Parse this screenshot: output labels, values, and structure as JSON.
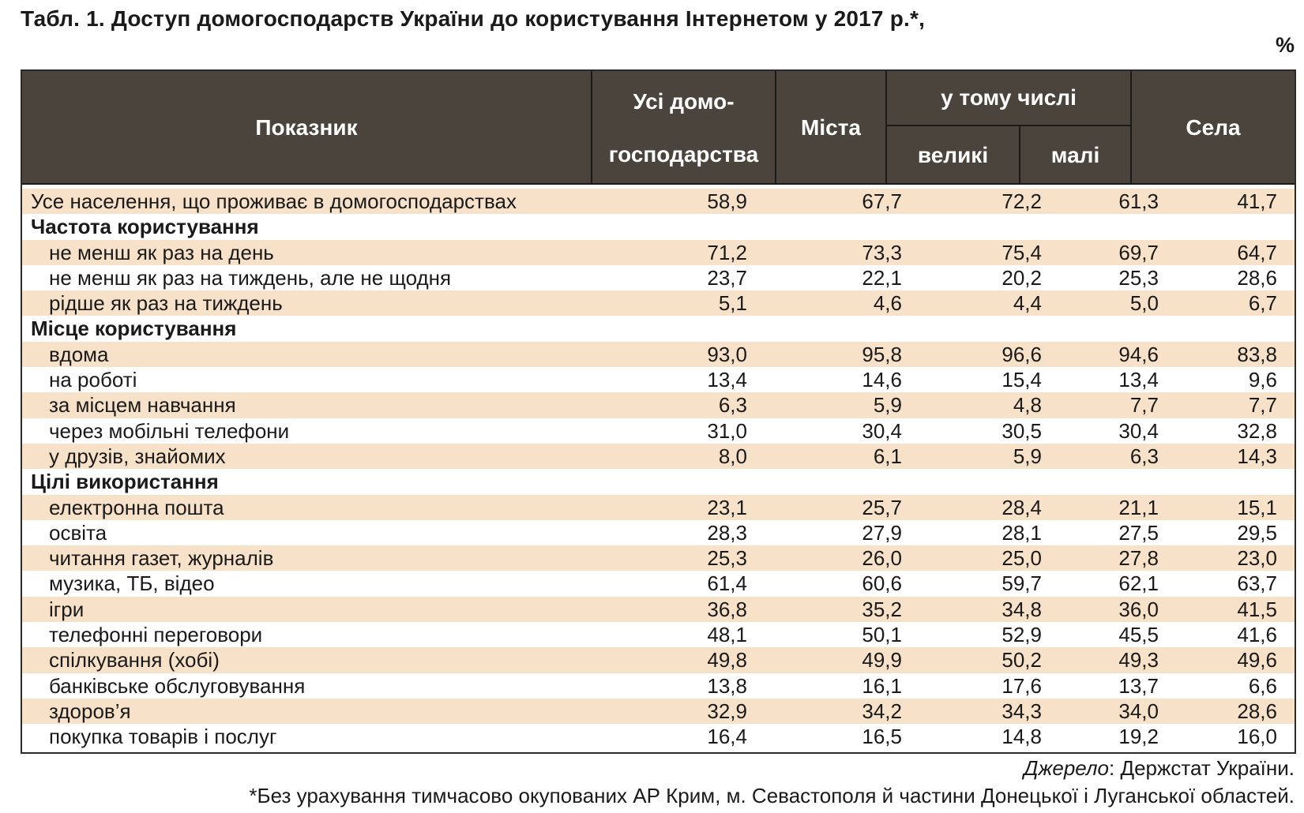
{
  "title": "Табл. 1. Доступ домогосподарств України до користування Інтернетом у 2017 р.*,",
  "unit": "%",
  "header": {
    "indicator": "Показник",
    "all_households": "Усі домо-\nгосподарства",
    "cities": "Міста",
    "including": "у тому числі",
    "large": "великі",
    "small": "малі",
    "villages": "Села"
  },
  "rows": [
    {
      "label": "Усе населення, що проживає в домогосподарствах",
      "values": [
        "58,9",
        "67,7",
        "72,2",
        "61,3",
        "41,7"
      ]
    },
    {
      "label": "Частота користування",
      "values": [
        "",
        "",
        "",
        "",
        ""
      ]
    },
    {
      "label": "не менш як раз на день",
      "values": [
        "71,2",
        "73,3",
        "75,4",
        "69,7",
        "64,7"
      ]
    },
    {
      "label": "не менш як раз на тиждень, але не щодня",
      "values": [
        "23,7",
        "22,1",
        "20,2",
        "25,3",
        "28,6"
      ]
    },
    {
      "label": "рідше як раз на тиждень",
      "values": [
        "5,1",
        "4,6",
        "4,4",
        "5,0",
        "6,7"
      ]
    },
    {
      "label": "Місце користування",
      "values": [
        "",
        "",
        "",
        "",
        ""
      ]
    },
    {
      "label": "вдома",
      "values": [
        "93,0",
        "95,8",
        "96,6",
        "94,6",
        "83,8"
      ]
    },
    {
      "label": "на роботі",
      "values": [
        "13,4",
        "14,6",
        "15,4",
        "13,4",
        "9,6"
      ]
    },
    {
      "label": "за місцем навчання",
      "values": [
        "6,3",
        "5,9",
        "4,8",
        "7,7",
        "7,7"
      ]
    },
    {
      "label": "через мобільні телефони",
      "values": [
        "31,0",
        "30,4",
        "30,5",
        "30,4",
        "32,8"
      ]
    },
    {
      "label": "у друзів, знайомих",
      "values": [
        "8,0",
        "6,1",
        "5,9",
        "6,3",
        "14,3"
      ]
    },
    {
      "label": "Цілі використання",
      "values": [
        "",
        "",
        "",
        "",
        ""
      ]
    },
    {
      "label": "електронна пошта",
      "values": [
        "23,1",
        "25,7",
        "28,4",
        "21,1",
        "15,1"
      ]
    },
    {
      "label": "освіта",
      "values": [
        "28,3",
        "27,9",
        "28,1",
        "27,5",
        "29,5"
      ]
    },
    {
      "label": "читання  газет, журналів",
      "values": [
        "25,3",
        "26,0",
        "25,0",
        "27,8",
        "23,0"
      ]
    },
    {
      "label": "музика, ТБ, відео",
      "values": [
        "61,4",
        "60,6",
        "59,7",
        "62,1",
        "63,7"
      ]
    },
    {
      "label": "ігри",
      "values": [
        "36,8",
        "35,2",
        "34,8",
        "36,0",
        "41,5"
      ]
    },
    {
      "label": "телефонні переговори",
      "values": [
        "48,1",
        "50,1",
        "52,9",
        "45,5",
        "41,6"
      ]
    },
    {
      "label": "спілкування (хобі)",
      "values": [
        "49,8",
        "49,9",
        "50,2",
        "49,3",
        "49,6"
      ]
    },
    {
      "label": "банківське обслуговування",
      "values": [
        "13,8",
        "16,1",
        "17,6",
        "13,7",
        "6,6"
      ]
    },
    {
      "label": "здоров’я",
      "values": [
        "32,9",
        "34,2",
        "34,3",
        "34,0",
        "28,6"
      ]
    },
    {
      "label": "покупка товарів і послуг",
      "values": [
        "16,4",
        "16,5",
        "14,8",
        "19,2",
        "16,0"
      ]
    }
  ],
  "source_label": "Джерело",
  "source_text": ": Держстат України.",
  "footnote": "*Без урахування тимчасово окупованих АР Крим, м. Севастополя й частини Донецької і Луганської областей."
}
